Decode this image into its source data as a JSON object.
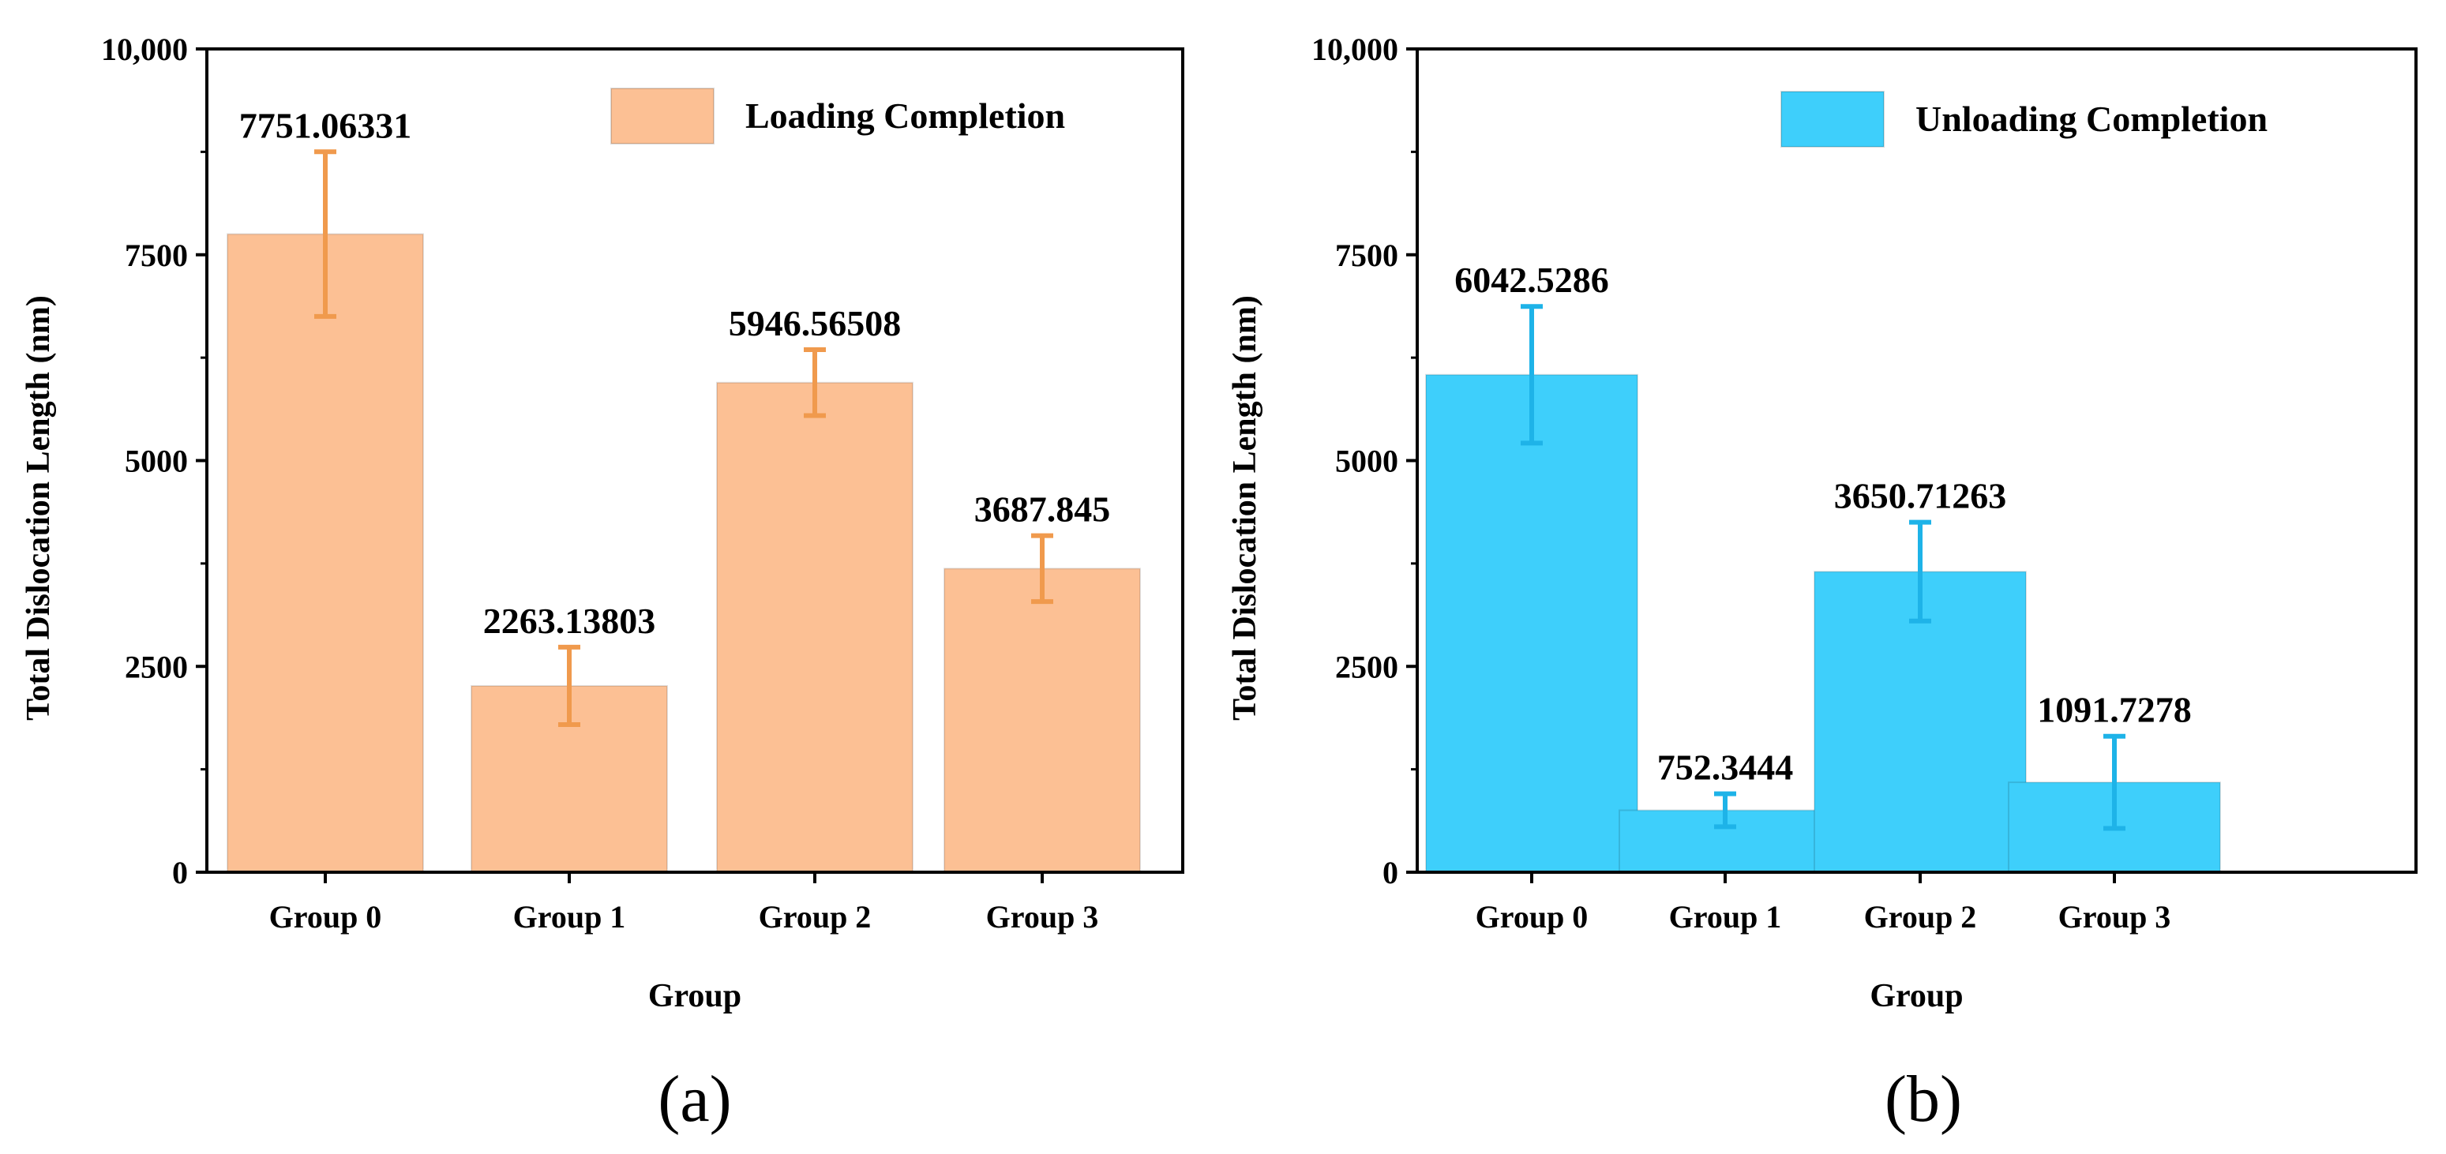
{
  "chart_data": [
    {
      "type": "bar",
      "panel_label": "(a)",
      "categories": [
        "Group 0",
        "Group 1",
        "Group 2",
        "Group 3"
      ],
      "values": [
        7751.06331,
        2263.13803,
        5946.56508,
        3687.845
      ],
      "value_labels": [
        "7751.06331",
        "2263.13803",
        "5946.56508",
        "3687.845"
      ],
      "errors": [
        1000,
        470,
        400,
        400
      ],
      "legend": "Loading Completion",
      "xlabel": "Group",
      "ylabel": "Total Dislocation Length (nm)",
      "ylim": [
        0,
        10000
      ],
      "yticks": [
        0,
        2500,
        5000,
        7500,
        10000
      ],
      "ytick_labels": [
        "0",
        "2500",
        "5000",
        "7500",
        "10,000"
      ],
      "bar_color": "#FCC094",
      "error_color": "#F09A4D"
    },
    {
      "type": "bar",
      "panel_label": "(b)",
      "categories": [
        "Group 0",
        "Group 1",
        "Group 2",
        "Group 3"
      ],
      "values": [
        6042.5286,
        752.3444,
        3650.71263,
        1091.7278
      ],
      "value_labels": [
        "6042.5286",
        "752.3444",
        "3650.71263",
        "1091.7278"
      ],
      "errors": [
        830,
        200,
        600,
        560
      ],
      "legend": "Unloading Completion",
      "xlabel": "Group",
      "ylabel": "Total Dislocation Length (nm)",
      "ylim": [
        0,
        10000
      ],
      "yticks": [
        0,
        2500,
        5000,
        7500,
        10000
      ],
      "ytick_labels": [
        "0",
        "2500",
        "5000",
        "7500",
        "10,000"
      ],
      "bar_color": "#3ECFFB",
      "error_color": "#1EB3E8"
    }
  ]
}
